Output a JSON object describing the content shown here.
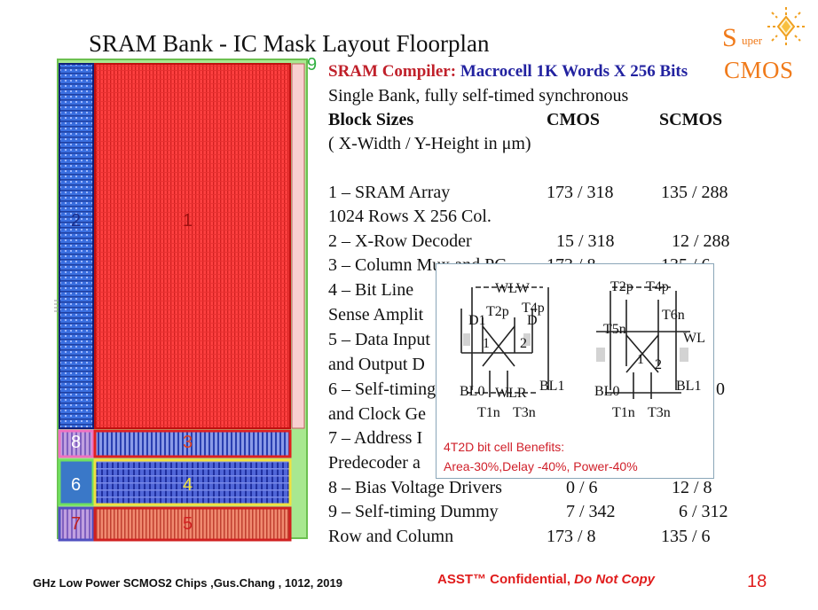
{
  "title": "SRAM Bank - IC Mask Layout Floorplan",
  "logo": {
    "s": "S",
    "uper": "uper",
    "cmos": "CMOS",
    "accent_color": "#f07a1a"
  },
  "floorplan": {
    "labels": {
      "b1": "1",
      "b2": "2",
      "b3": "3",
      "b4": "4",
      "b5": "5",
      "b6": "6",
      "b7": "7",
      "b8": "8",
      "b9": "9"
    },
    "colors": {
      "array": "#ff3b3b",
      "decoder": "#3a6fe0",
      "dummy": "#8ee07a",
      "sense": "#ffee55",
      "pink": "#f0a0d0"
    }
  },
  "compiler": {
    "label": "SRAM Compiler:",
    "desc": "Macrocell 1K Words X 256 Bits",
    "subtitle": "Single Bank, fully self-timed synchronous"
  },
  "table": {
    "header": {
      "name": "Block Sizes",
      "cmos": "CMOS",
      "scmos": "SCMOS"
    },
    "units": "( X-Width / Y-Height  in μm)",
    "rows": [
      {
        "name": "1 – SRAM Array",
        "cmos": "173 / 318",
        "scmos": "135 / 288"
      },
      {
        "name": "1024 Rows X 256 Col.",
        "cmos": "",
        "scmos": ""
      },
      {
        "name": "2 – X-Row Decoder",
        "cmos": "15 / 318",
        "scmos": "12 / 288"
      },
      {
        "name": "3 – Column Mux and PC",
        "cmos": "173 / 8",
        "scmos": "135 / 6"
      },
      {
        "name": "4 – Bit Line",
        "cmos": "",
        "scmos": ""
      },
      {
        "name": "Sense Amplit",
        "cmos": "",
        "scmos": ""
      },
      {
        "name": "5 – Data Input",
        "cmos": "",
        "scmos": ""
      },
      {
        "name": "and Output D",
        "cmos": "",
        "scmos": ""
      },
      {
        "name": "6 – Self-timing",
        "cmos": "",
        "scmos": "0"
      },
      {
        "name": "and Clock Ge",
        "cmos": "",
        "scmos": ""
      },
      {
        "name": "7 – Address I",
        "cmos": "",
        "scmos": ""
      },
      {
        "name": "Predecoder a",
        "cmos": "",
        "scmos": ""
      },
      {
        "name": "8 – Bias Voltage Drivers",
        "cmos": "0 / 6",
        "scmos": "12 / 8"
      },
      {
        "name": "9 – Self-timing  Dummy",
        "cmos": "7 / 342",
        "scmos": "6 / 312"
      },
      {
        "name": "Row and Column",
        "cmos": "173 / 8",
        "scmos": "135 / 6"
      }
    ]
  },
  "bitcell": {
    "left": {
      "wlw": "WLW",
      "t2p": "T2p",
      "t4p": "T4p",
      "d1": "D1",
      "d2": "D",
      "n1": "1",
      "n2": "2",
      "bl0": "BL0",
      "wlr": "WLR",
      "bl1": "BL1",
      "t1n": "T1n",
      "t3n": "T3n"
    },
    "right": {
      "t2p": "T2p",
      "t4p": "T4p",
      "t6n": "T6n",
      "t5n": "T5n",
      "wl": "WL",
      "n1": "1",
      "n2": "2",
      "bl0": "BL0",
      "bl1": "BL1",
      "t1n": "T1n",
      "t3n": "T3n"
    },
    "benefits_title": "4T2D bit cell Benefits:",
    "benefits": "Area-30%,Delay  -40%, Power-40%"
  },
  "footer": {
    "left": "GHz Low Power SCMOS2 Chips ,Gus.Chang , 1012, 2019",
    "confidential": "ASST™ Confidential,",
    "nocopy": "Do Not Copy",
    "page": "18"
  }
}
